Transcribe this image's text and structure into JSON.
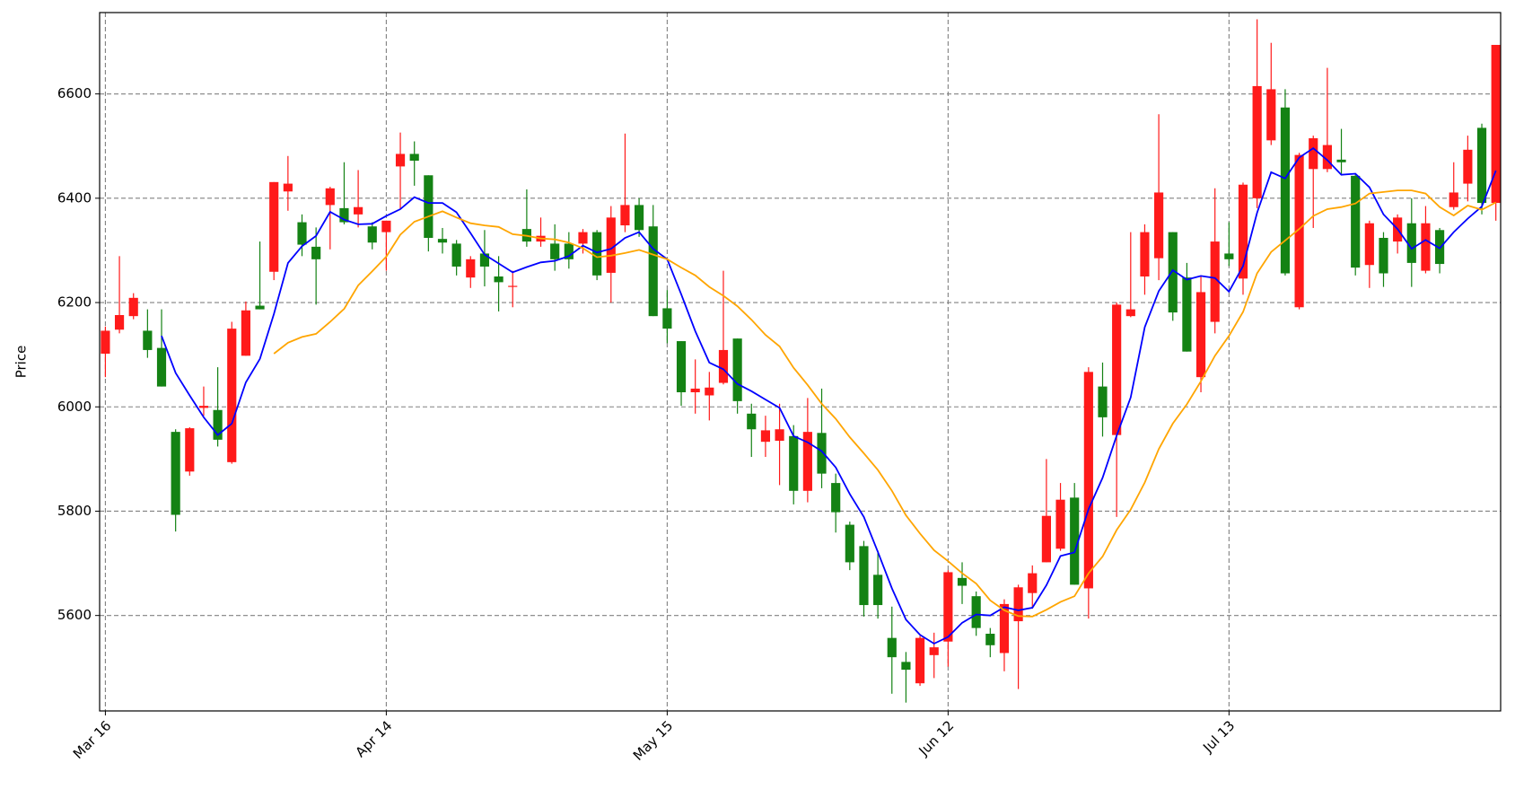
{
  "chart_data": {
    "type": "candlestick",
    "y_label": "Price",
    "categories": [
      "Mar 16",
      null,
      null,
      null,
      null,
      null,
      null,
      null,
      null,
      null,
      null,
      null,
      null,
      null,
      null,
      null,
      null,
      null,
      null,
      null,
      "Apr 14",
      null,
      null,
      null,
      null,
      null,
      null,
      null,
      null,
      null,
      null,
      null,
      null,
      null,
      null,
      null,
      null,
      null,
      null,
      null,
      "May 15",
      null,
      null,
      null,
      null,
      null,
      null,
      null,
      null,
      null,
      null,
      null,
      null,
      null,
      null,
      null,
      null,
      null,
      null,
      null,
      "Jun 12",
      null,
      null,
      null,
      null,
      null,
      null,
      null,
      null,
      null,
      null,
      null,
      null,
      null,
      null,
      null,
      null,
      null,
      null,
      null,
      "Jul 13",
      null,
      null,
      null,
      null,
      null,
      null,
      null,
      null,
      null,
      null,
      null,
      null,
      null,
      null,
      null,
      null,
      null,
      null,
      null
    ],
    "open": [
      6102,
      6148,
      6174,
      6146,
      6113,
      5952,
      5876,
      5998,
      5994,
      5894,
      6098,
      6194,
      6259,
      6413,
      6354,
      6307,
      6387,
      6381,
      6369,
      6346,
      6335,
      6461,
      6485,
      6444,
      6322,
      6313,
      6248,
      6294,
      6250,
      6230,
      6341,
      6317,
      6313,
      6313,
      6313,
      6335,
      6257,
      6348,
      6387,
      6346,
      6189,
      6126,
      6028,
      6022,
      6046,
      6131,
      5987,
      5933,
      5935,
      5944,
      5839,
      5950,
      5854,
      5774,
      5733,
      5678,
      5557,
      5511,
      5470,
      5524,
      5550,
      5672,
      5637,
      5565,
      5528,
      5589,
      5643,
      5702,
      5728,
      5826,
      5652,
      6039,
      5946,
      6174,
      6250,
      6285,
      6335,
      6248,
      6057,
      6163,
      6294,
      6246,
      6400,
      6511,
      6574,
      6191,
      6456,
      6456,
      6474,
      6443,
      6272,
      6324,
      6317,
      6352,
      6261,
      6339,
      6383,
      6428,
      6535,
      6391
    ],
    "high": [
      6154,
      6289,
      6218,
      6187,
      6187,
      5957,
      5961,
      6039,
      6076,
      6163,
      6202,
      6317,
      6431,
      6481,
      6369,
      6344,
      6422,
      6469,
      6454,
      6354,
      6357,
      6526,
      6509,
      6444,
      6343,
      6320,
      6289,
      6339,
      6289,
      6261,
      6417,
      6363,
      6350,
      6335,
      6341,
      6339,
      6385,
      6524,
      6400,
      6387,
      6224,
      6126,
      6091,
      6067,
      6261,
      6131,
      6006,
      5983,
      6006,
      5965,
      6017,
      6035,
      5872,
      5780,
      5743,
      5724,
      5617,
      5530,
      5561,
      5567,
      5687,
      5702,
      5646,
      5576,
      5631,
      5659,
      5696,
      5900,
      5854,
      5854,
      6076,
      6085,
      6200,
      6335,
      6350,
      6561,
      6335,
      6276,
      6252,
      6419,
      6354,
      6430,
      6743,
      6698,
      6609,
      6487,
      6520,
      6650,
      6533,
      6446,
      6357,
      6335,
      6369,
      6400,
      6385,
      6343,
      6469,
      6520,
      6543,
      6694
    ],
    "low": [
      6057,
      6141,
      6168,
      6094,
      6039,
      5761,
      5868,
      5983,
      5924,
      5891,
      6098,
      6187,
      6243,
      6376,
      6289,
      6196,
      6302,
      6350,
      6344,
      6302,
      6261,
      6380,
      6424,
      6298,
      6294,
      6252,
      6228,
      6231,
      6183,
      6191,
      6307,
      6307,
      6261,
      6265,
      6294,
      6243,
      6200,
      6335,
      6326,
      6174,
      6122,
      6002,
      5987,
      5974,
      6043,
      5987,
      5904,
      5904,
      5850,
      5813,
      5817,
      5844,
      5759,
      5687,
      5598,
      5594,
      5450,
      5433,
      5465,
      5480,
      5502,
      5622,
      5561,
      5520,
      5493,
      5459,
      5613,
      5702,
      5724,
      5659,
      5594,
      5943,
      5789,
      6172,
      6215,
      6243,
      6165,
      6106,
      6028,
      6141,
      6270,
      6215,
      6381,
      6502,
      6252,
      6187,
      6343,
      6450,
      6446,
      6252,
      6228,
      6230,
      6294,
      6230,
      6256,
      6256,
      6378,
      6394,
      6369,
      6357
    ],
    "close": [
      6146,
      6176,
      6209,
      6109,
      6039,
      5793,
      5959,
      6002,
      5937,
      6150,
      6185,
      6187,
      6431,
      6428,
      6311,
      6283,
      6419,
      6354,
      6383,
      6315,
      6357,
      6485,
      6472,
      6324,
      6315,
      6269,
      6283,
      6269,
      6239,
      6232,
      6317,
      6328,
      6283,
      6283,
      6335,
      6252,
      6363,
      6387,
      6339,
      6174,
      6150,
      6028,
      6035,
      6037,
      6109,
      6011,
      5957,
      5955,
      5957,
      5839,
      5952,
      5872,
      5798,
      5702,
      5620,
      5620,
      5520,
      5496,
      5557,
      5539,
      5683,
      5657,
      5576,
      5543,
      5622,
      5654,
      5681,
      5791,
      5822,
      5659,
      6067,
      5980,
      6196,
      6187,
      6335,
      6411,
      6181,
      6106,
      6220,
      6317,
      6283,
      6426,
      6615,
      6609,
      6256,
      6483,
      6515,
      6502,
      6469,
      6267,
      6352,
      6256,
      6363,
      6276,
      6352,
      6274,
      6411,
      6493,
      6391,
      6694
    ],
    "up_color": "#ff1a1a",
    "down_color": "#148214",
    "lines": [
      {
        "color": "#0000ff",
        "values": [
          null,
          null,
          null,
          null,
          6136,
          6065,
          6022,
          5980,
          5946,
          5968,
          6047,
          6092,
          6178,
          6276,
          6308,
          6328,
          6374,
          6359,
          6350,
          6351,
          6366,
          6379,
          6402,
          6391,
          6391,
          6373,
          6333,
          6292,
          6275,
          6258,
          6268,
          6277,
          6280,
          6289,
          6309,
          6296,
          6303,
          6324,
          6335,
          6303,
          6283,
          6216,
          6145,
          6085,
          6072,
          6044,
          6030,
          6014,
          5998,
          5944,
          5932,
          5915,
          5884,
          5833,
          5789,
          5722,
          5652,
          5592,
          5563,
          5546,
          5559,
          5586,
          5602,
          5600,
          5616,
          5610,
          5615,
          5658,
          5714,
          5721,
          5804,
          5864,
          5945,
          6018,
          6153,
          6222,
          6262,
          6244,
          6251,
          6247,
          6221,
          6270,
          6372,
          6450,
          6438,
          6478,
          6496,
          6473,
          6445,
          6447,
          6421,
          6369,
          6341,
          6303,
          6320,
          6304,
          6335,
          6361,
          6384,
          6453
        ]
      },
      {
        "color": "#ffa500",
        "values": [
          null,
          null,
          null,
          null,
          null,
          null,
          null,
          null,
          null,
          null,
          null,
          null,
          6102,
          6123,
          6134,
          6140,
          6163,
          6188,
          6233,
          6260,
          6288,
          6330,
          6355,
          6365,
          6375,
          6363,
          6352,
          6348,
          6345,
          6331,
          6328,
          6323,
          6321,
          6315,
          6304,
          6287,
          6290,
          6295,
          6301,
          6292,
          6283,
          6267,
          6252,
          6230,
          6213,
          6193,
          6167,
          6138,
          6116,
          6075,
          6042,
          6006,
          5977,
          5942,
          5911,
          5879,
          5839,
          5792,
          5757,
          5725,
          5704,
          5681,
          5661,
          5629,
          5610,
          5599,
          5598,
          5611,
          5626,
          5637,
          5681,
          5713,
          5764,
          5803,
          5855,
          5919,
          5968,
          6005,
          6049,
          6098,
          6136,
          6182,
          6256,
          6297,
          6319,
          6341,
          6366,
          6379,
          6383,
          6390,
          6409,
          6412,
          6415,
          6415,
          6409,
          6383,
          6367,
          6386,
          6378,
          6392
        ]
      }
    ],
    "ylim": [
      5417,
      6756
    ],
    "yticks": [
      5600,
      5800,
      6000,
      6200,
      6400,
      6600
    ],
    "grid": true
  }
}
